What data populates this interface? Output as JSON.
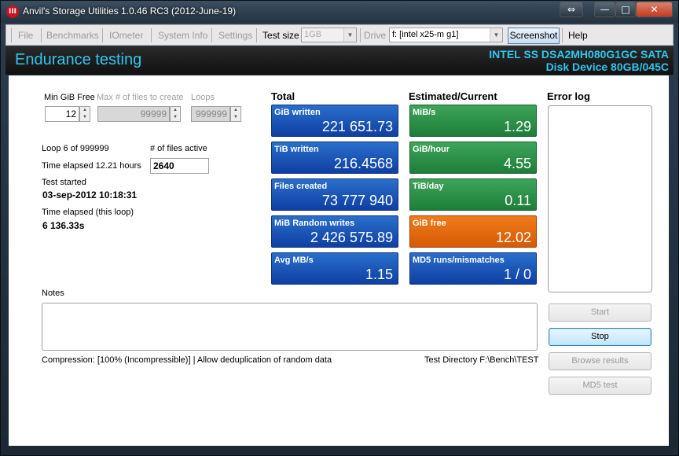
{
  "window": {
    "title": "Anvil's Storage Utilities 1.0.46 RC3 (2012-June-19)",
    "controls": {
      "restore": "⇔",
      "minimize": "—",
      "maximize": "□",
      "close": "✕"
    }
  },
  "menu": {
    "file": "File",
    "benchmarks": "Benchmarks",
    "iometer": "IOmeter",
    "system_info": "System Info",
    "settings": "Settings",
    "test_size_label": "Test size",
    "test_size_value": "1GB",
    "drive_label": "Drive",
    "drive_value": "f: [intel x25-m g1]",
    "screenshot": "Screenshot",
    "help": "Help"
  },
  "header": {
    "title": "Endurance testing",
    "device_line1": "INTEL SS DSA2MH080G1GC SATA",
    "device_line2": "Disk Device 80GB/045C"
  },
  "settings": {
    "min_gib_free_label": "Min GiB Free",
    "min_gib_free_value": "12",
    "max_files_label": "Max # of files to create",
    "max_files_value": "99999",
    "loops_label": "Loops",
    "loops_value": "999999"
  },
  "status": {
    "loop": "Loop 6 of 999999",
    "files_active_label": "# of files active",
    "files_active_value": "2640",
    "time_elapsed": "Time elapsed 12.21 hours",
    "test_started_label": "Test started",
    "test_started_value": "03-sep-2012 10:18:31",
    "time_elapsed_loop_label": "Time elapsed (this loop)",
    "time_elapsed_loop_value": "6 136.33s"
  },
  "total": {
    "heading": "Total",
    "tiles": [
      {
        "label": "GiB written",
        "value": "221 651.73"
      },
      {
        "label": "TiB written",
        "value": "216.4568"
      },
      {
        "label": "Files created",
        "value": "73 777 940"
      },
      {
        "label": "MiB Random writes",
        "value": "2 426 575.89"
      },
      {
        "label": "Avg MB/s",
        "value": "1.15"
      }
    ]
  },
  "estimated": {
    "heading": "Estimated/Current",
    "tiles": [
      {
        "label": "MiB/s",
        "value": "1.29",
        "color": "#2f9049"
      },
      {
        "label": "GiB/hour",
        "value": "4.55",
        "color": "#2f9049"
      },
      {
        "label": "TiB/day",
        "value": "0.11",
        "color": "#2f9049"
      },
      {
        "label": "GiB free",
        "value": "12.02",
        "color": "#e46a10"
      },
      {
        "label": "MD5 runs/mismatches",
        "value": "1 / 0",
        "color": "#1a55b8"
      }
    ]
  },
  "error_log": {
    "heading": "Error log"
  },
  "notes": {
    "label": "Notes",
    "compression": "Compression: [100% (Incompressible)] | Allow deduplication of random data",
    "test_directory": "Test Directory F:\\Bench\\TEST"
  },
  "buttons": {
    "start": "Start",
    "stop": "Stop",
    "browse_results": "Browse results",
    "md5_test": "MD5 test"
  },
  "colors": {
    "accent": "#2fc6ee",
    "tile_blue": "#1a55b8",
    "tile_green": "#2f9049",
    "tile_orange": "#e46a10"
  }
}
